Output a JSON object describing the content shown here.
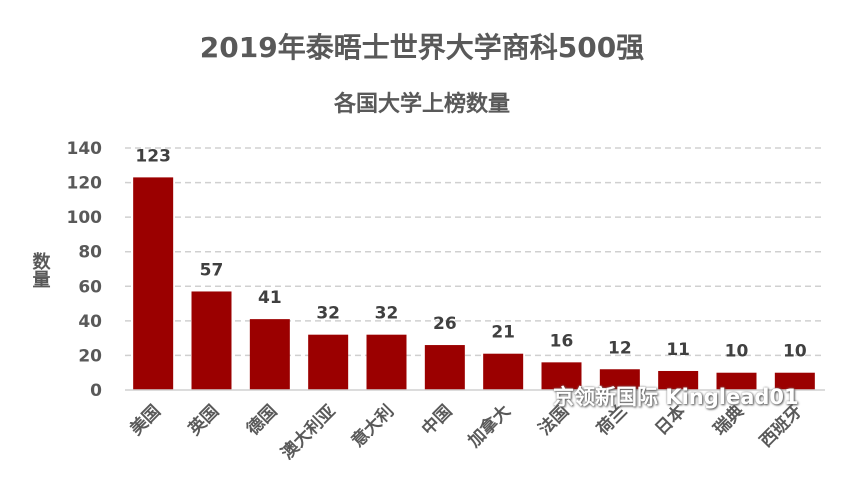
{
  "chart_data": {
    "type": "bar",
    "title": "2019年泰晤士世界大学商科500强",
    "subtitle": "各国大学上榜数量",
    "xlabel": "",
    "ylabel": "数量",
    "categories": [
      "美国",
      "英国",
      "德国",
      "澳大利亚",
      "意大利",
      "中国",
      "加拿大",
      "法国",
      "荷兰",
      "日本",
      "瑞典",
      "西班牙"
    ],
    "values": [
      123,
      57,
      41,
      32,
      32,
      26,
      21,
      16,
      12,
      11,
      10,
      10
    ],
    "ylim": [
      0,
      140
    ],
    "yticks": [
      0,
      20,
      40,
      60,
      80,
      100,
      120,
      140
    ],
    "grid": true,
    "legend": "none",
    "bar_color": "#9b0000"
  },
  "watermark": "京领新国际 Kinglead01"
}
